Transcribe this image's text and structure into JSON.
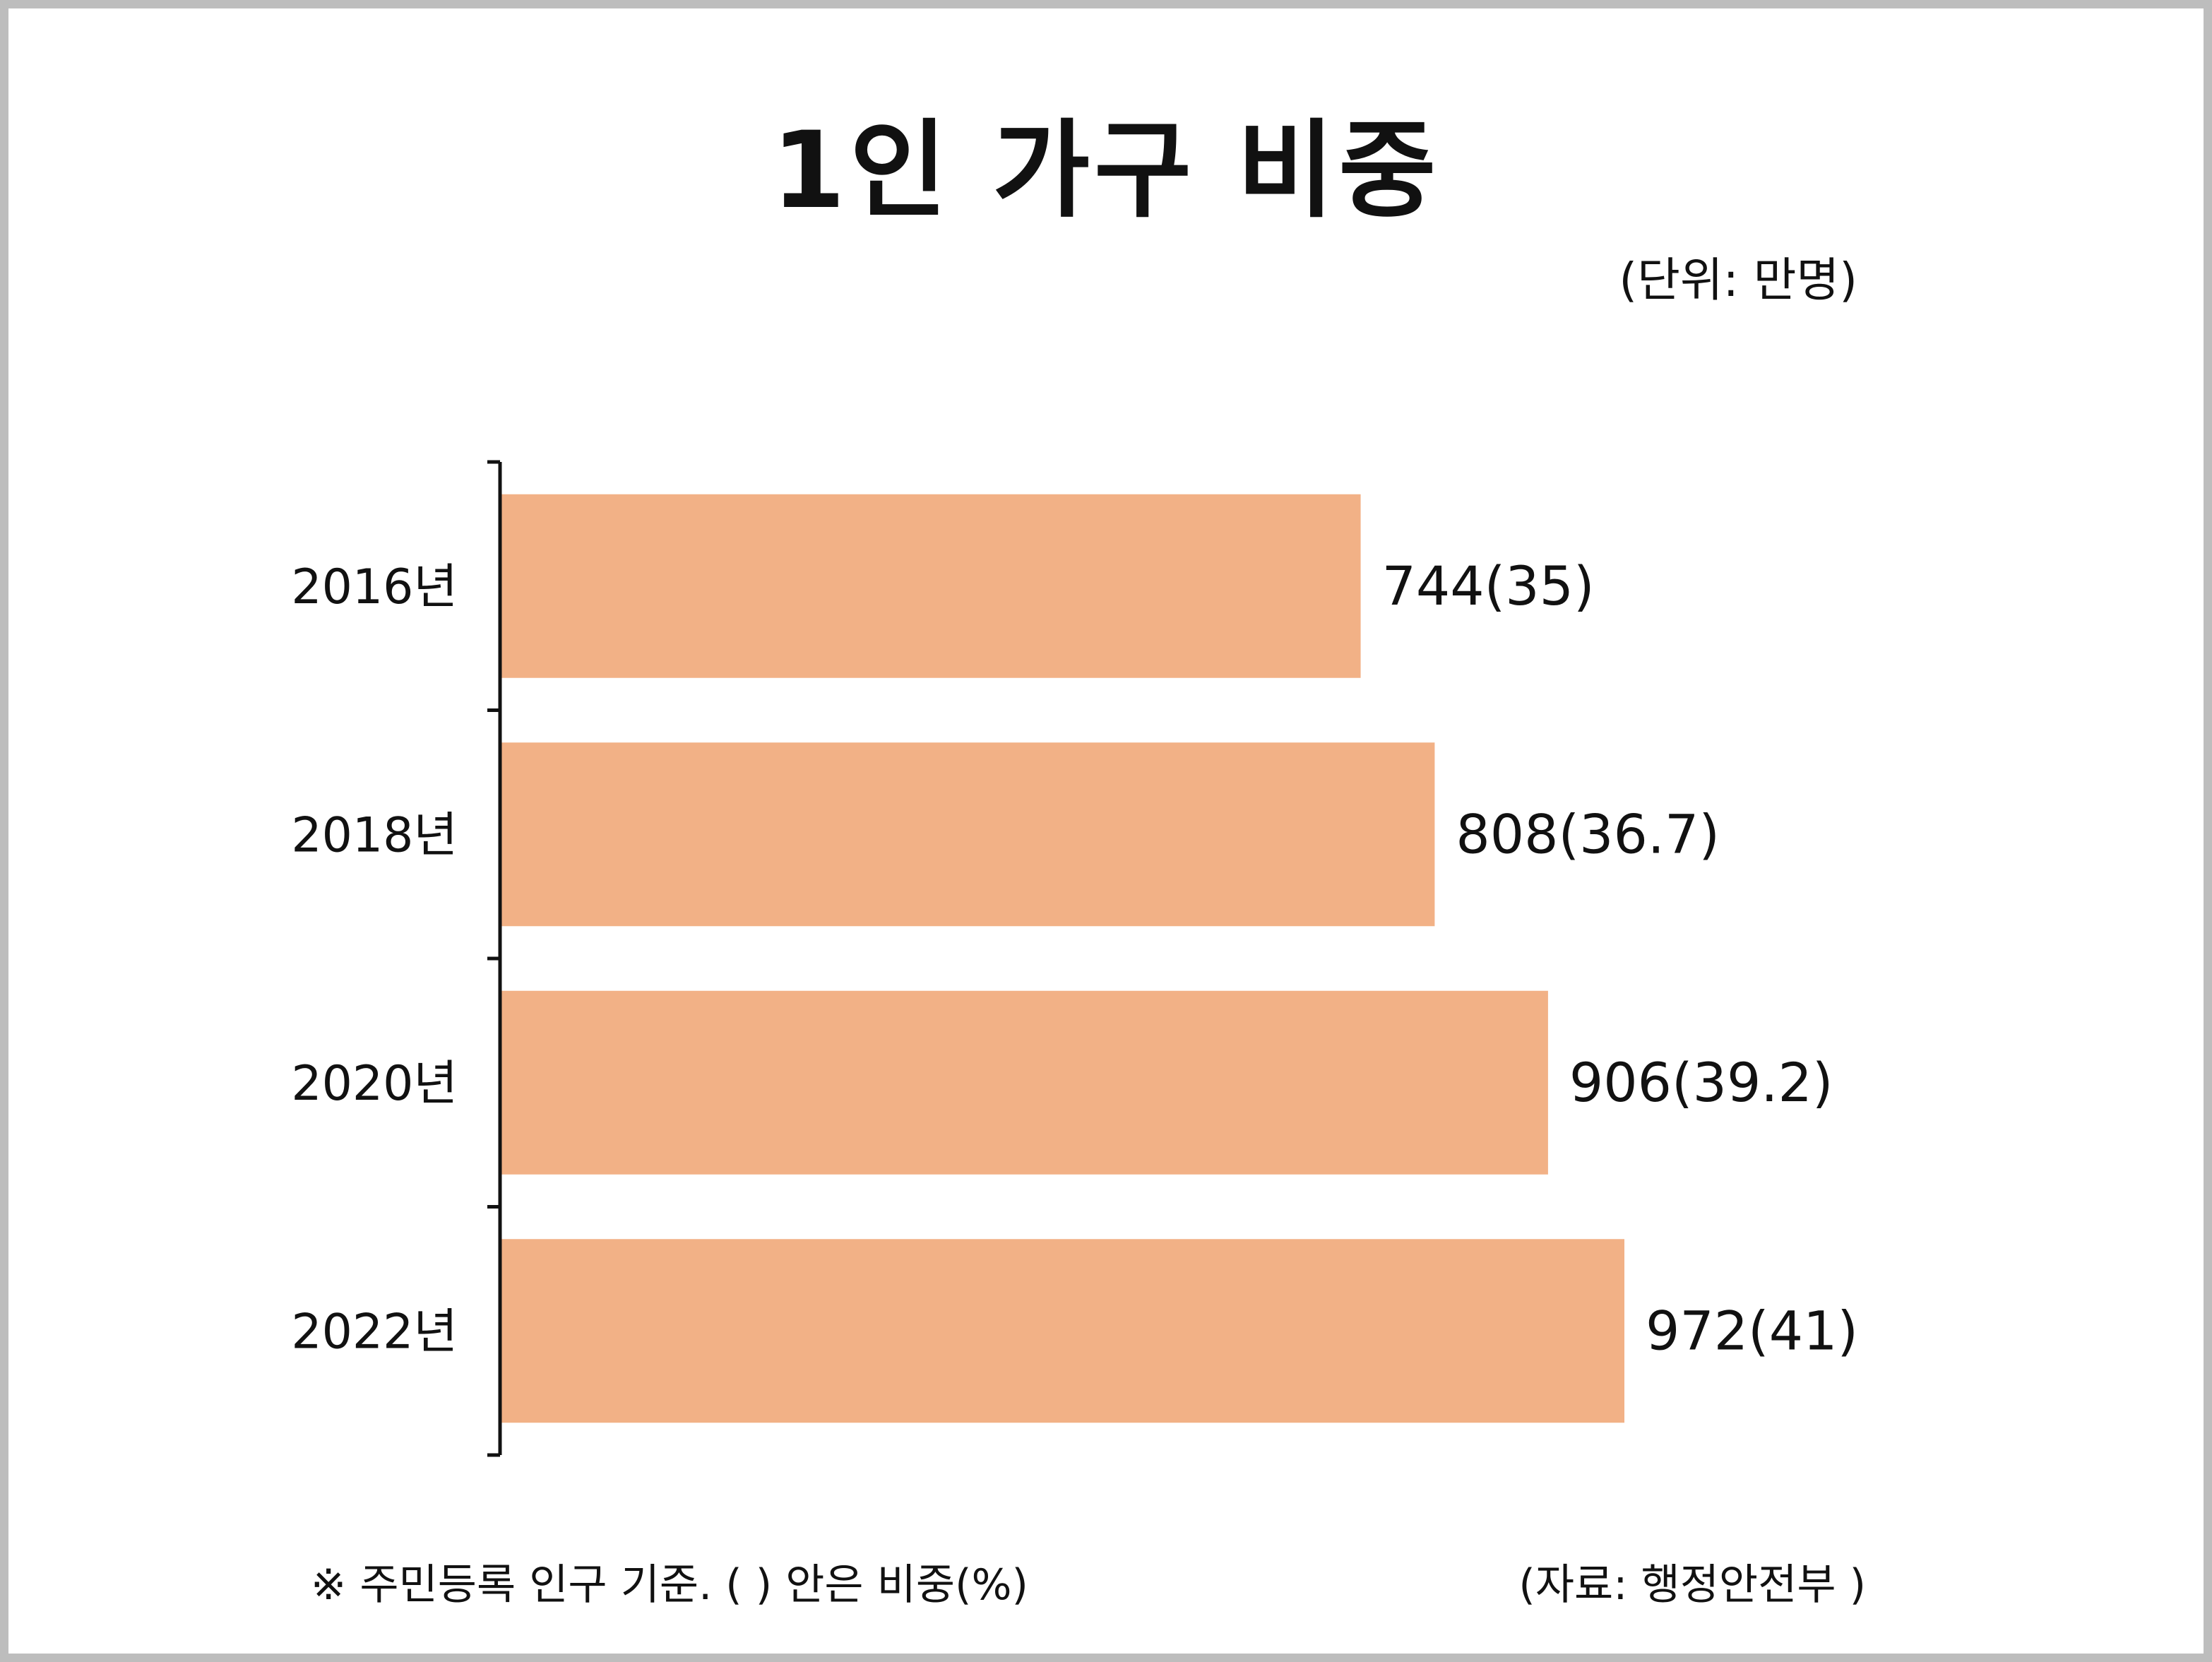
{
  "chart_data": {
    "type": "bar",
    "orientation": "horizontal",
    "title": "1인 가구 비중",
    "unit_label": "(단위: 만명)",
    "categories": [
      "2016년",
      "2018년",
      "2020년",
      "2022년"
    ],
    "values": [
      744,
      808,
      906,
      972
    ],
    "shares_percent": [
      35,
      36.7,
      39.2,
      41
    ],
    "data_labels": [
      "744(35)",
      "808(36.7)",
      "906(39.2)",
      "972(41)"
    ],
    "bar_color": "#F2B186",
    "axis_color": "#111111",
    "grid": false,
    "legend": "none"
  },
  "footnote": "※ 주민등록 인구 기준. ( ) 안은 비중(%)",
  "source": "(자료: 행정안전부 )"
}
